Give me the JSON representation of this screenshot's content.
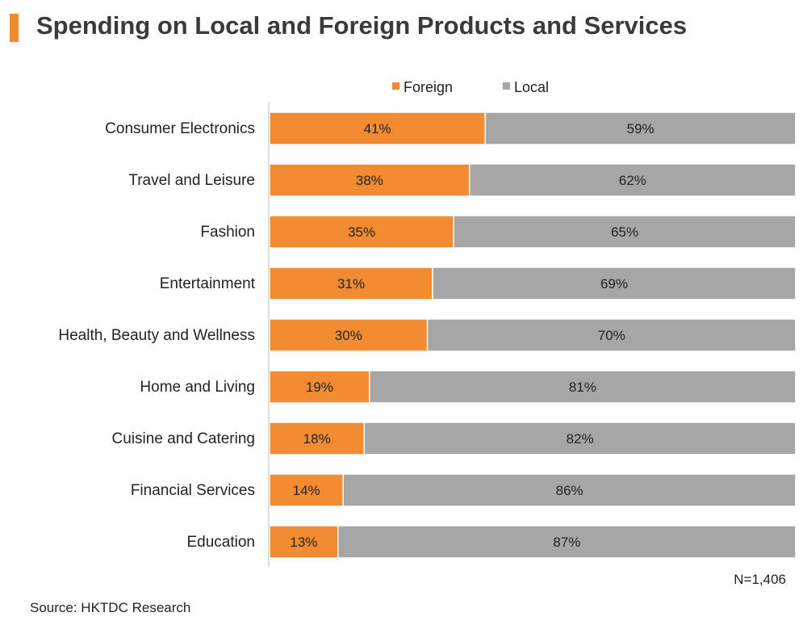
{
  "title": "Spending on Local and Foreign Products and Services",
  "colors": {
    "accent": "#f08a31",
    "foreign": "#f28c33",
    "local": "#a6a6a6"
  },
  "chart_data": {
    "type": "bar",
    "orientation": "horizontal",
    "stacked": true,
    "percent_stacked": true,
    "categories": [
      "Consumer Electronics",
      "Travel and Leisure",
      "Fashion",
      "Entertainment",
      "Health, Beauty and Wellness",
      "Home and Living",
      "Cuisine and Catering",
      "Financial Services",
      "Education"
    ],
    "series": [
      {
        "name": "Foreign",
        "color": "#f28c33",
        "values": [
          41,
          38,
          35,
          31,
          30,
          19,
          18,
          14,
          13
        ]
      },
      {
        "name": "Local",
        "color": "#a6a6a6",
        "values": [
          59,
          62,
          65,
          69,
          70,
          81,
          82,
          86,
          87
        ]
      }
    ],
    "value_suffix": "%",
    "xlim": [
      0,
      100
    ],
    "legend_position": "top",
    "grid": false
  },
  "footnote": "N=1,406",
  "source": "Source: HKTDC Research"
}
